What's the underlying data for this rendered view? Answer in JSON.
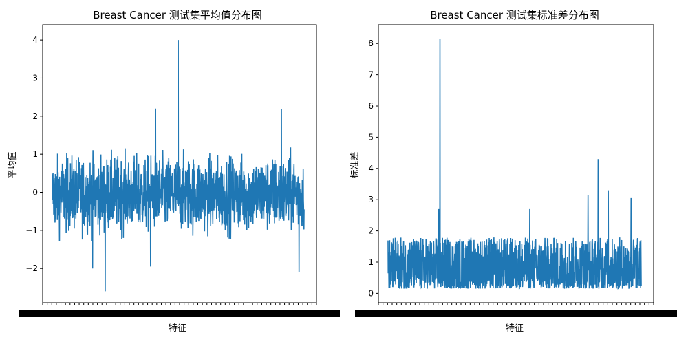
{
  "chart_data": [
    {
      "type": "line",
      "title": "Breast Cancer 测试集平均值分布图",
      "xlabel": "特征",
      "ylabel": "平均值",
      "ylim": [
        -2.9,
        4.4
      ],
      "yticks": [
        -2,
        -1,
        0,
        1,
        2,
        3,
        4
      ],
      "grid": false,
      "color": "#1f77b4",
      "x_tick_labels_overlapping": true,
      "summary": {
        "typical_range": [
          -1.3,
          1.2
        ],
        "notable_max": 4.0,
        "notable_min": -2.6
      },
      "highlights": [
        {
          "x": 0.5,
          "y": 4.0
        },
        {
          "x": 0.41,
          "y": 2.2
        },
        {
          "x": 0.91,
          "y": 2.18
        },
        {
          "x": 0.21,
          "y": -2.6
        },
        {
          "x": 0.16,
          "y": -2.0
        },
        {
          "x": 0.98,
          "y": -2.1
        },
        {
          "x": 0.39,
          "y": -1.95
        }
      ]
    },
    {
      "type": "line",
      "title": "Breast Cancer 测试集标准差分布图",
      "xlabel": "特征",
      "ylabel": "标准差",
      "ylim": [
        -0.3,
        8.6
      ],
      "yticks": [
        0,
        1,
        2,
        3,
        4,
        5,
        6,
        7,
        8
      ],
      "grid": false,
      "color": "#1f77b4",
      "x_tick_labels_overlapping": true,
      "summary": {
        "typical_range": [
          0.15,
          1.8
        ],
        "notable_max": 8.15
      },
      "highlights": [
        {
          "x": 0.205,
          "y": 8.15
        },
        {
          "x": 0.83,
          "y": 4.3
        },
        {
          "x": 0.87,
          "y": 3.3
        },
        {
          "x": 0.79,
          "y": 3.15
        },
        {
          "x": 0.96,
          "y": 3.05
        },
        {
          "x": 0.2,
          "y": 2.7
        },
        {
          "x": 0.56,
          "y": 2.7
        }
      ]
    }
  ]
}
